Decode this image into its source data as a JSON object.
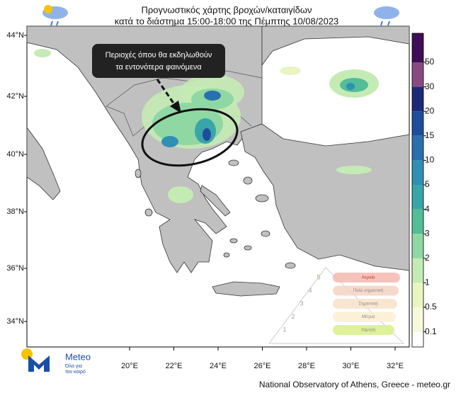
{
  "header": {
    "title_line1": "Προγνωστικός χάρτης βροχών/καταιγίδων",
    "title_line2": "κατά το διάστημα 15:00-18:00 της Πέμπτης 10/08/2023"
  },
  "map": {
    "lat_labels": [
      "44°N",
      "42°N",
      "40°N",
      "38°N",
      "36°N",
      "34°N"
    ],
    "lon_labels": [
      "20°E",
      "22°E",
      "24°E",
      "26°E",
      "28°E",
      "30°E",
      "32°E"
    ],
    "annotation": {
      "line1": "Περιοχές όπου θα εκδηλωθούν",
      "line2": "τα εντονότερα φαινόμενα"
    }
  },
  "colorbar": {
    "levels": [
      50,
      30,
      20,
      15,
      10,
      5,
      4,
      3,
      2,
      1,
      0.5,
      0.1
    ],
    "colors": [
      "#3f0d57",
      "#8a4a80",
      "#1b2a78",
      "#1f4d9c",
      "#2a6fb0",
      "#2f8fb5",
      "#3aa5a8",
      "#52bd96",
      "#8fd8a4",
      "#c4ebb4",
      "#e8f5c0",
      "#f7f9dc",
      "#ffffff"
    ]
  },
  "risk_scale": {
    "levels": [
      "Ακραία",
      "Πολύ σημαντική",
      "Σημαντική",
      "Μέτρια",
      "Χαμηλή"
    ],
    "numbers": [
      "5",
      "4",
      "3",
      "2",
      "1"
    ]
  },
  "logo": {
    "name": "Meteo",
    "tagline_line1": "Όλα για",
    "tagline_line2": "τον καιρό"
  },
  "footer": {
    "credit": "National Observatory of Athens, Greece - meteo.gr"
  }
}
